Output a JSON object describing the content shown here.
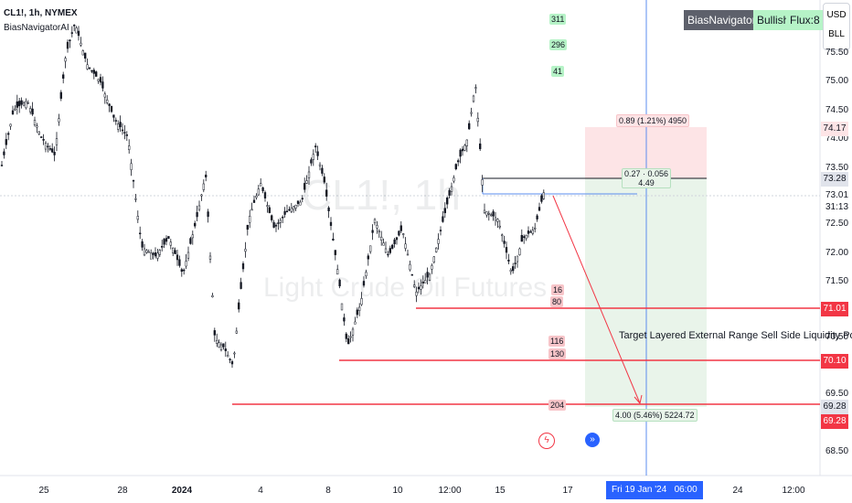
{
  "header": {
    "symbol": "CL1!, 1h, NYMEX",
    "indicator": "BiasNavigatorAI"
  },
  "watermark": {
    "ticker": "CL1!, 1h",
    "name": "Light Crude Oil Futures"
  },
  "bias_panel": {
    "label": "BiasNavigatorAI:",
    "bias": "Bullish",
    "flux": "Flux:8"
  },
  "units": {
    "currency": "USD",
    "unit": "BLL"
  },
  "y_axis": {
    "ticks": [
      "75.50",
      "75.00",
      "74.50",
      "74.00",
      "73.50",
      "73.01",
      "72.50",
      "72.00",
      "71.50",
      "70.50",
      "69.50",
      "68.50"
    ],
    "countdown": "31:13"
  },
  "price_tags": {
    "target_top": "74.17",
    "entry": "73.28",
    "level_1": "71.01",
    "level_2": "70.10",
    "level_3_gray": "69.28",
    "level_3_red": "69.28"
  },
  "x_axis": {
    "ticks": [
      "25",
      "28",
      "2024",
      "4",
      "8",
      "10",
      "12:00",
      "15",
      "17",
      "24",
      "12:00"
    ],
    "cursor_label": "Fri 19 Jan '24   06:00"
  },
  "counters": {
    "top": [
      "311",
      "296",
      "41"
    ],
    "mid": [
      "16",
      "80"
    ],
    "low": [
      "116",
      "130"
    ],
    "bottom": "204"
  },
  "position": {
    "target_label": "0.89 (1.21%) 4950",
    "entry_label_1": "0.27 · 0.056",
    "entry_label_2": "4.49",
    "stop_label": "4.00 (5.46%) 5224.72"
  },
  "annotation": "Target Layered External Range Sell Side Liquidity Pool",
  "colors": {
    "red_line": "#f23645",
    "blue_line": "#2962ff",
    "green_zone": "#e8f5e9",
    "red_zone": "#fde4e6",
    "candle": "#131722"
  }
}
